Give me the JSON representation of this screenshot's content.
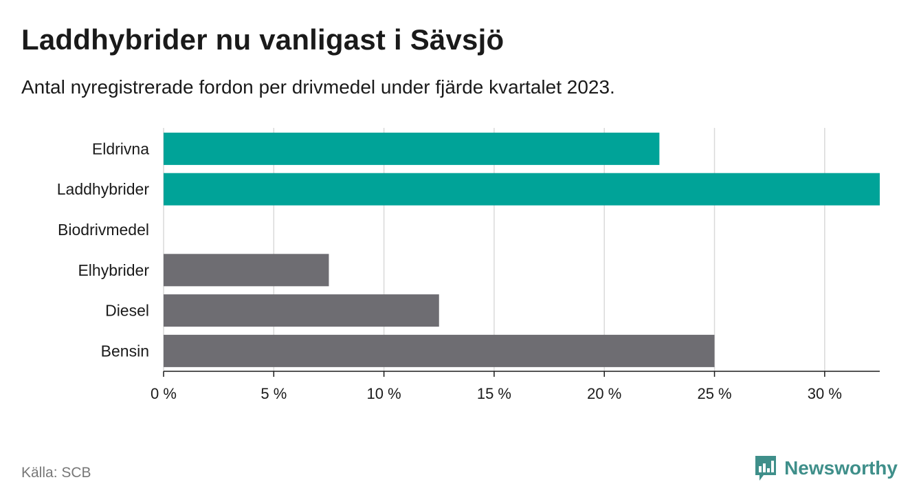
{
  "header": {
    "title": "Laddhybrider nu vanligast i Sävsjö",
    "subtitle": "Antal nyregistrerade fordon per drivmedel under fjärde kvartalet 2023."
  },
  "footer": {
    "source": "Källa: SCB",
    "brand": "Newsworthy",
    "brand_icon": "bar-chart-speech-icon"
  },
  "colors": {
    "highlight": "#00a398",
    "default": "#6e6d72",
    "grid": "#d9d9d9",
    "axis": "#1a1a1a",
    "brand": "#3f8f8a"
  },
  "chart_data": {
    "type": "bar",
    "orientation": "horizontal",
    "categories": [
      "Eldrivna",
      "Laddhybrider",
      "Biodrivmedel",
      "Elhybrider",
      "Diesel",
      "Bensin"
    ],
    "values": [
      22.5,
      32.5,
      0,
      7.5,
      12.5,
      25
    ],
    "highlighted": [
      true,
      true,
      false,
      false,
      false,
      false
    ],
    "unit": "%",
    "xlim": [
      0,
      32.5
    ],
    "ticks": [
      0,
      5,
      10,
      15,
      20,
      25,
      30
    ],
    "tick_labels": [
      "0 %",
      "5 %",
      "10 %",
      "15 %",
      "20 %",
      "25 %",
      "30 %"
    ],
    "grid": true,
    "title": "Laddhybrider nu vanligast i Sävsjö",
    "xlabel": "",
    "ylabel": ""
  }
}
